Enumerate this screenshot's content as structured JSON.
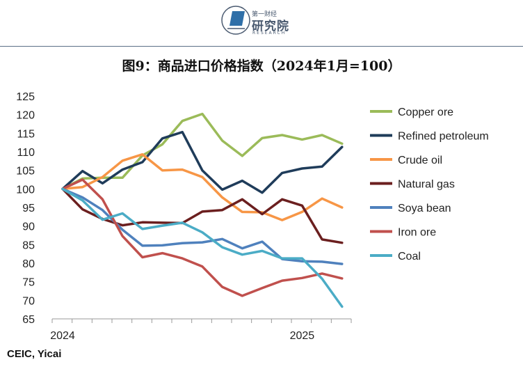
{
  "logo": {
    "top_text": "第一财经",
    "main_text": "研究院",
    "sub_text": "RESEARCH"
  },
  "title": "图9：商品进口价格指数（2024年1月=100）",
  "source": "CEIC, Yicai",
  "colors": {
    "copper_ore": "#9bbb59",
    "refined_petroleum": "#1f3c5a",
    "crude_oil": "#f79646",
    "natural_gas": "#6b1f1f",
    "soya_bean": "#4f81bd",
    "iron_ore": "#c0504d",
    "coal": "#4bacc6",
    "axis": "#999999"
  },
  "chart_data": {
    "type": "line",
    "xlabel": "",
    "ylabel": "",
    "ylim": [
      65,
      125
    ],
    "yticks": [
      65,
      70,
      75,
      80,
      85,
      90,
      95,
      100,
      105,
      110,
      115,
      120,
      125
    ],
    "x": [
      "2024-01",
      "2024-02",
      "2024-03",
      "2024-04",
      "2024-05",
      "2024-06",
      "2024-07",
      "2024-08",
      "2024-09",
      "2024-10",
      "2024-11",
      "2024-12",
      "2025-01",
      "2025-02",
      "2025-03"
    ],
    "xtick_labels": [
      {
        "label": "2024",
        "at": "2024-01"
      },
      {
        "label": "2025",
        "at": "2025-01"
      }
    ],
    "grid": false,
    "legend_position": "right",
    "series": [
      {
        "name": "Copper ore",
        "color_key": "copper_ore",
        "values": [
          100,
          102.8,
          103,
          103,
          109,
          112,
          118.3,
          120.2,
          113,
          108.9,
          113.7,
          114.5,
          113.3,
          114.5,
          112.2
        ]
      },
      {
        "name": "Refined petroleum",
        "color_key": "refined_petroleum",
        "values": [
          100,
          104.8,
          101.5,
          105.2,
          107.2,
          113.6,
          115.3,
          105,
          99.8,
          102.2,
          99,
          104.3,
          105.5,
          106,
          111.3
        ]
      },
      {
        "name": "Crude oil",
        "color_key": "crude_oil",
        "values": [
          100,
          100.5,
          103.2,
          107.6,
          109.3,
          105,
          105.2,
          103.2,
          97.7,
          93.8,
          93.7,
          91.6,
          93.8,
          97.4,
          95
        ]
      },
      {
        "name": "Natural gas",
        "color_key": "natural_gas",
        "values": [
          100,
          94.5,
          91.9,
          90.2,
          91,
          90.9,
          90.8,
          93.9,
          94.3,
          97.2,
          93.2,
          97.2,
          95.5,
          86.4,
          85.5
        ]
      },
      {
        "name": "Soya bean",
        "color_key": "soya_bean",
        "values": [
          100,
          97.7,
          94.3,
          89,
          84.7,
          84.8,
          85.4,
          85.6,
          86.5,
          84,
          85.8,
          81.1,
          80.5,
          80.4,
          79.8
        ]
      },
      {
        "name": "Iron ore",
        "color_key": "iron_ore",
        "values": [
          100,
          102.5,
          97.2,
          87.3,
          81.6,
          82.7,
          81.3,
          79.1,
          73.6,
          71.2,
          73.3,
          75.3,
          76,
          77.2,
          75.9
        ]
      },
      {
        "name": "Coal",
        "color_key": "coal",
        "values": [
          100,
          96.9,
          91.7,
          93.4,
          89.2,
          90.1,
          90.9,
          88.3,
          84.3,
          82.3,
          83.3,
          81.3,
          81.3,
          75.8,
          68.3
        ]
      }
    ]
  }
}
